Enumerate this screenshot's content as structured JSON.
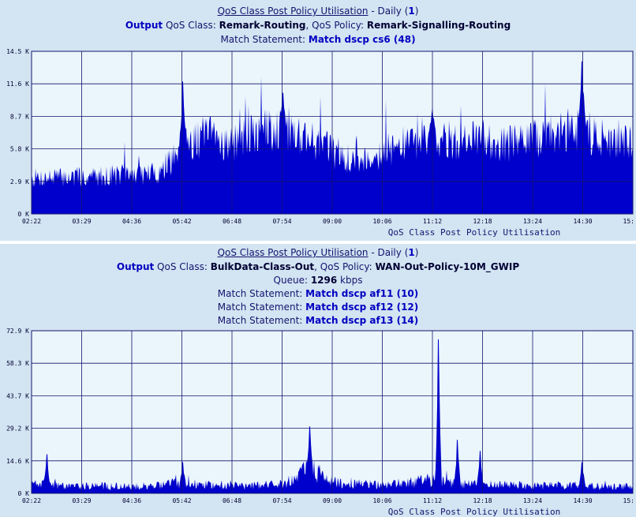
{
  "charts": [
    {
      "header": {
        "title": "QoS Class Post Policy Utilisation",
        "period_sep": " - ",
        "period": "Daily",
        "count": "1",
        "direction": "Output",
        "class_label": " QoS Class: ",
        "class_name": "Remark-Routing",
        "policy_label": ", QoS Policy: ",
        "policy_name": "Remark-Signalling-Routing",
        "queue_label": "",
        "queue_value": "",
        "queue_unit": "",
        "match_label": "Match Statement: ",
        "matches": [
          "Match dscp cs6 (48)"
        ]
      },
      "x_title": "QoS Class Post Policy Utilisation",
      "chart_data": {
        "type": "area",
        "title": "QoS Class Post Policy Utilisation",
        "x_ticks": [
          "02:22",
          "03:29",
          "04:36",
          "05:42",
          "06:48",
          "07:54",
          "09:00",
          "10:06",
          "11:12",
          "12:18",
          "13:24",
          "14:30",
          "15:"
        ],
        "y_ticks": [
          "0 K",
          "2.9 K",
          "5.8 K",
          "8.7 K",
          "11.6 K",
          "14.5 K"
        ],
        "ylim": [
          0,
          14.5
        ],
        "y_unit": "K",
        "grid": true,
        "fill_color": "#0000cc",
        "series": [
          {
            "x": [
              "02:22",
              "03:29",
              "04:36",
              "05:15",
              "05:42",
              "06:15",
              "06:48",
              "07:20",
              "07:54",
              "08:30",
              "09:00",
              "09:30",
              "10:06",
              "10:40",
              "11:12",
              "11:45",
              "12:18",
              "12:50",
              "13:24",
              "14:00",
              "14:30",
              "15:00"
            ],
            "values": [
              3.2,
              3.3,
              3.5,
              3.7,
              6.0,
              7.0,
              6.2,
              7.2,
              7.8,
              6.8,
              5.6,
              4.6,
              5.5,
              6.3,
              7.2,
              6.2,
              6.8,
              6.2,
              6.6,
              7.2,
              7.8,
              6.3
            ],
            "peaks": [
              {
                "x": "05:42",
                "value": 11.8
              },
              {
                "x": "07:54",
                "value": 10.8
              },
              {
                "x": "11:12",
                "value": 9.5
              },
              {
                "x": "14:30",
                "value": 13.6
              }
            ]
          }
        ]
      }
    },
    {
      "header": {
        "title": "QoS Class Post Policy Utilisation",
        "period_sep": " - ",
        "period": "Daily",
        "count": "1",
        "direction": "Output",
        "class_label": " QoS Class: ",
        "class_name": "BulkData-Class-Out",
        "policy_label": ", QoS Policy: ",
        "policy_name": "WAN-Out-Policy-10M_GWIP",
        "queue_label": "Queue: ",
        "queue_value": "1296",
        "queue_unit": " kbps",
        "match_label": "Match Statement: ",
        "matches": [
          "Match dscp af11 (10)",
          "Match dscp af12 (12)",
          "Match dscp af13 (14)"
        ]
      },
      "x_title": "QoS Class Post Policy Utilisation",
      "chart_data": {
        "type": "area",
        "title": "QoS Class Post Policy Utilisation",
        "x_ticks": [
          "02:22",
          "03:29",
          "04:36",
          "05:42",
          "06:48",
          "07:54",
          "09:00",
          "10:06",
          "11:12",
          "12:18",
          "13:24",
          "14:30",
          "15:"
        ],
        "y_ticks": [
          "0 K",
          "14.6 K",
          "29.2 K",
          "43.7 K",
          "58.3 K",
          "72.9 K"
        ],
        "ylim": [
          0,
          72.9
        ],
        "y_unit": "K",
        "grid": true,
        "fill_color": "#0000cc",
        "series": [
          {
            "x": [
              "02:22",
              "03:29",
              "04:36",
              "05:42",
              "06:48",
              "07:54",
              "08:30",
              "09:00",
              "10:06",
              "11:12",
              "11:45",
              "12:18",
              "13:24",
              "14:30",
              "15:00"
            ],
            "values": [
              4.0,
              3.5,
              3.0,
              4.5,
              3.5,
              4.0,
              11.0,
              5.0,
              3.5,
              6.0,
              4.5,
              4.0,
              3.5,
              3.5,
              3.0
            ],
            "peaks": [
              {
                "x": "02:42",
                "value": 17.5
              },
              {
                "x": "05:42",
                "value": 14.0
              },
              {
                "x": "08:30",
                "value": 30.0
              },
              {
                "x": "11:20",
                "value": 69.0
              },
              {
                "x": "11:45",
                "value": 24.0
              },
              {
                "x": "12:15",
                "value": 19.0
              },
              {
                "x": "14:30",
                "value": 14.0
              }
            ]
          }
        ]
      }
    }
  ]
}
